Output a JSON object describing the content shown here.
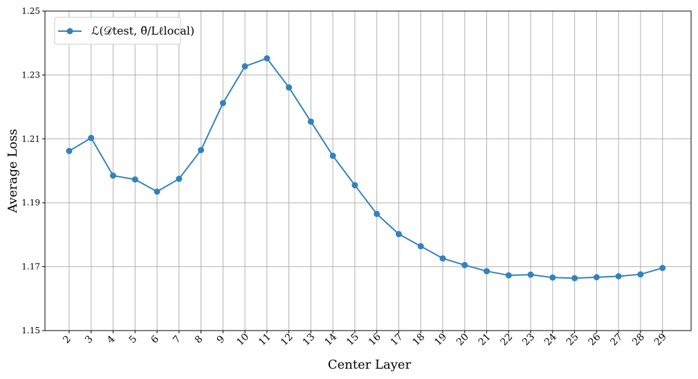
{
  "chart_data": {
    "type": "line",
    "title": "",
    "xlabel": "Center Layer",
    "ylabel": "Average Loss",
    "x": [
      2,
      3,
      4,
      5,
      6,
      7,
      8,
      9,
      10,
      11,
      12,
      13,
      14,
      15,
      16,
      17,
      18,
      19,
      20,
      21,
      22,
      23,
      24,
      25,
      26,
      27,
      28,
      29
    ],
    "series": [
      {
        "name": "ℒ(𝒟test, θ̃/Lℓlocal)",
        "color": "#3182bd",
        "values": [
          1.2062,
          1.2103,
          1.1985,
          1.1973,
          1.1935,
          1.1975,
          1.2065,
          1.2212,
          1.2327,
          1.2352,
          1.2261,
          1.2154,
          1.2047,
          1.1955,
          1.1865,
          1.1802,
          1.1764,
          1.1726,
          1.1705,
          1.1686,
          1.1673,
          1.1675,
          1.1666,
          1.1664,
          1.1667,
          1.167,
          1.1676,
          1.1696
        ]
      }
    ],
    "ylim": [
      1.15,
      1.25
    ],
    "yticks": [
      1.15,
      1.17,
      1.19,
      1.21,
      1.23,
      1.25
    ],
    "ytick_labels": [
      "1.15",
      "1.17",
      "1.19",
      "1.21",
      "1.23",
      "1.25"
    ],
    "xlim": [
      0.9,
      30.3
    ],
    "grid": true,
    "legend_position": "top-left",
    "xtick_rotation": -45
  }
}
